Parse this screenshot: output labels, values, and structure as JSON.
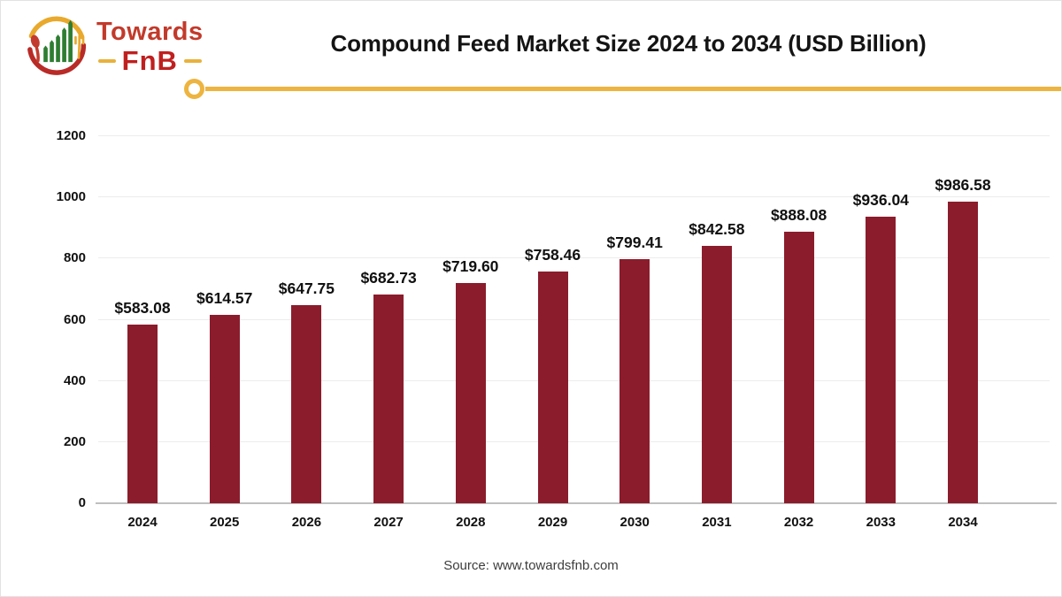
{
  "logo": {
    "brand_top": "Towards",
    "brand_bottom": "FnB"
  },
  "header": {
    "title": "Compound Feed Market Size 2024 to 2034 (USD Billion)"
  },
  "source": {
    "text": "Source: www.towardsfnb.com"
  },
  "colors": {
    "bar": "#8b1c2c",
    "accent_yellow": "#edb43f",
    "logo_red": "#c23a2b",
    "logo_green": "#2e7d32",
    "grid": "#ececec",
    "baseline": "#bfbfbf"
  },
  "chart_data": {
    "type": "bar",
    "title": "Compound Feed Market Size 2024 to 2034 (USD Billion)",
    "categories": [
      "2024",
      "2025",
      "2026",
      "2027",
      "2028",
      "2029",
      "2030",
      "2031",
      "2032",
      "2033",
      "2034"
    ],
    "values": [
      583.08,
      614.57,
      647.75,
      682.73,
      719.6,
      758.46,
      799.41,
      842.58,
      888.08,
      936.04,
      986.58
    ],
    "value_prefix": "$",
    "xlabel": "",
    "ylabel": "",
    "ylim": [
      0,
      1200
    ],
    "yticks": [
      0,
      200,
      400,
      600,
      800,
      1000,
      1200
    ],
    "grid": true,
    "legend": "none",
    "bar_color": "#8b1c2c"
  }
}
